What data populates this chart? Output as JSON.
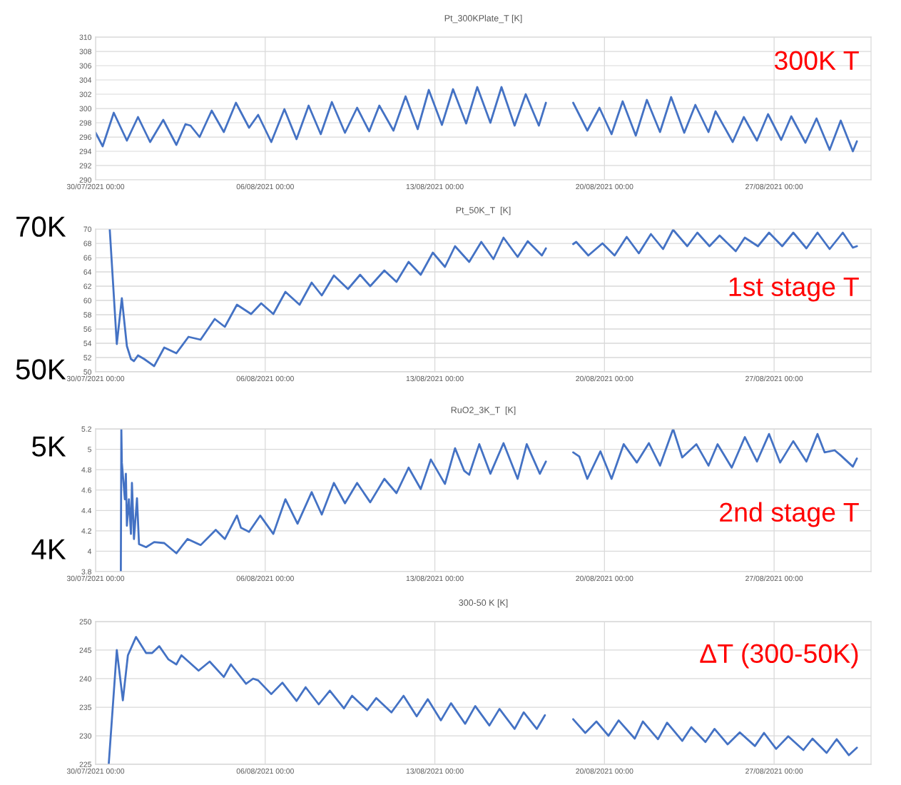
{
  "chart_data": [
    {
      "type": "line",
      "title": "Pt_300KPlate_T [K]",
      "color": "#4472c4",
      "grid": true,
      "xlim": [
        "2021-07-30T00:00",
        "2021-08-31T00:00"
      ],
      "xticks": [
        {
          "value": "2021-07-30",
          "label": "30/07/2021 00:00"
        },
        {
          "value": "2021-08-06",
          "label": "06/08/2021 00:00"
        },
        {
          "value": "2021-08-13",
          "label": "13/08/2021 00:00"
        },
        {
          "value": "2021-08-20",
          "label": "20/08/2021 00:00"
        },
        {
          "value": "2021-08-27",
          "label": "27/08/2021 00:00"
        }
      ],
      "ylim": [
        290,
        310
      ],
      "yticks": [
        290,
        292,
        294,
        296,
        298,
        300,
        302,
        304,
        306,
        308,
        310
      ],
      "annotations": [
        "300K T"
      ],
      "x": [
        "2021-07-30T00:00",
        "2021-07-30T07:00",
        "2021-07-30T18:00",
        "2021-07-31T07:00",
        "2021-07-31T18:00",
        "2021-08-01T06:00",
        "2021-08-01T19:00",
        "2021-08-02T08:00",
        "2021-08-02T17:00",
        "2021-08-02T22:00",
        "2021-08-03T07:00",
        "2021-08-03T19:00",
        "2021-08-04T07:00",
        "2021-08-04T19:00",
        "2021-08-05T08:00",
        "2021-08-05T17:00",
        "2021-08-06T06:00",
        "2021-08-06T19:00",
        "2021-08-07T07:00",
        "2021-08-07T19:00",
        "2021-08-08T07:00",
        "2021-08-08T18:00",
        "2021-08-09T07:00",
        "2021-08-09T19:00",
        "2021-08-10T07:00",
        "2021-08-10T17:00",
        "2021-08-11T07:00",
        "2021-08-11T19:00",
        "2021-08-12T07:00",
        "2021-08-12T18:00",
        "2021-08-13T07:00",
        "2021-08-13T18:00",
        "2021-08-14T07:00",
        "2021-08-14T18:00",
        "2021-08-15T07:00",
        "2021-08-15T18:00",
        "2021-08-16T07:00",
        "2021-08-16T18:00",
        "2021-08-17T07:00",
        "2021-08-17T14:00",
        "2021-08-18T00:00",
        "2021-08-18T17:00",
        "2021-08-19T07:00",
        "2021-08-19T19:00",
        "2021-08-20T07:00",
        "2021-08-20T18:00",
        "2021-08-21T07:00",
        "2021-08-21T18:00",
        "2021-08-22T07:00",
        "2021-08-22T18:00",
        "2021-08-23T07:00",
        "2021-08-23T18:00",
        "2021-08-24T07:00",
        "2021-08-24T14:00",
        "2021-08-25T07:00",
        "2021-08-25T18:00",
        "2021-08-26T07:00",
        "2021-08-26T18:00",
        "2021-08-27T07:00",
        "2021-08-27T17:00",
        "2021-08-28T07:00",
        "2021-08-28T18:00",
        "2021-08-29T07:00",
        "2021-08-29T18:00",
        "2021-08-30T06:00",
        "2021-08-30T10:00"
      ],
      "values": [
        296.6,
        294.7,
        299.4,
        295.5,
        298.8,
        295.3,
        298.4,
        294.9,
        297.8,
        297.6,
        296.0,
        299.7,
        296.7,
        300.8,
        297.3,
        299.1,
        295.3,
        299.9,
        295.7,
        300.4,
        296.4,
        300.9,
        296.6,
        300.1,
        296.8,
        300.4,
        296.9,
        301.7,
        297.1,
        302.6,
        297.7,
        302.7,
        297.9,
        303.0,
        298.0,
        303.0,
        297.6,
        302.0,
        297.6,
        300.8,
        null,
        300.8,
        296.9,
        300.1,
        296.4,
        301.0,
        296.2,
        301.2,
        296.7,
        301.6,
        296.6,
        300.5,
        296.7,
        299.6,
        295.3,
        298.8,
        295.5,
        299.2,
        295.6,
        298.9,
        295.2,
        298.6,
        294.2,
        298.3,
        294.0,
        295.4
      ]
    },
    {
      "type": "line",
      "title": "Pt_50K_T  [K]",
      "color": "#4472c4",
      "grid": true,
      "xlim": [
        "2021-07-30T00:00",
        "2021-08-31T00:00"
      ],
      "xticks": [
        {
          "value": "2021-07-30",
          "label": "30/07/2021 00:00"
        },
        {
          "value": "2021-08-06",
          "label": "06/08/2021 00:00"
        },
        {
          "value": "2021-08-13",
          "label": "13/08/2021 00:00"
        },
        {
          "value": "2021-08-20",
          "label": "20/08/2021 00:00"
        },
        {
          "value": "2021-08-27",
          "label": "27/08/2021 00:00"
        }
      ],
      "ylim": [
        50,
        70
      ],
      "yticks": [
        50,
        52,
        54,
        56,
        58,
        60,
        62,
        64,
        66,
        68,
        70
      ],
      "annotations": [
        "1st stage T",
        "70K",
        "50K"
      ],
      "x": [
        "2021-07-30T14:00",
        "2021-07-30T21:00",
        "2021-07-31T02:00",
        "2021-07-31T07:00",
        "2021-07-31T11:00",
        "2021-07-31T14:00",
        "2021-07-31T18:00",
        "2021-08-01T00:00",
        "2021-08-01T10:00",
        "2021-08-01T20:00",
        "2021-08-02T08:00",
        "2021-08-02T20:00",
        "2021-08-03T08:00",
        "2021-08-03T22:00",
        "2021-08-04T08:00",
        "2021-08-04T20:00",
        "2021-08-05T10:00",
        "2021-08-05T20:00",
        "2021-08-06T08:00",
        "2021-08-06T20:00",
        "2021-08-07T10:00",
        "2021-08-07T22:00",
        "2021-08-08T08:00",
        "2021-08-08T20:00",
        "2021-08-09T10:00",
        "2021-08-09T22:00",
        "2021-08-10T08:00",
        "2021-08-10T22:00",
        "2021-08-11T10:00",
        "2021-08-11T22:00",
        "2021-08-12T10:00",
        "2021-08-12T22:00",
        "2021-08-13T10:00",
        "2021-08-13T20:00",
        "2021-08-14T10:00",
        "2021-08-14T22:00",
        "2021-08-15T10:00",
        "2021-08-15T20:00",
        "2021-08-16T10:00",
        "2021-08-16T20:00",
        "2021-08-17T10:00",
        "2021-08-17T14:00",
        "2021-08-18T00:00",
        "2021-08-18T17:00",
        "2021-08-18T20:00",
        "2021-08-19T08:00",
        "2021-08-19T22:00",
        "2021-08-20T10:00",
        "2021-08-20T22:00",
        "2021-08-21T10:00",
        "2021-08-21T22:00",
        "2021-08-22T10:00",
        "2021-08-22T20:00",
        "2021-08-23T10:00",
        "2021-08-23T20:00",
        "2021-08-24T08:00",
        "2021-08-24T18:00",
        "2021-08-25T10:00",
        "2021-08-25T19:00",
        "2021-08-26T08:00",
        "2021-08-26T19:00",
        "2021-08-27T08:00",
        "2021-08-27T19:00",
        "2021-08-28T08:00",
        "2021-08-28T19:00",
        "2021-08-29T07:00",
        "2021-08-29T20:00",
        "2021-08-30T06:00",
        "2021-08-30T10:00"
      ],
      "values": [
        70,
        53.9,
        60.3,
        53.6,
        51.8,
        51.5,
        52.3,
        51.8,
        50.8,
        53.4,
        52.6,
        54.9,
        54.5,
        57.4,
        56.3,
        59.4,
        58.1,
        59.6,
        58.1,
        61.2,
        59.4,
        62.5,
        60.7,
        63.5,
        61.6,
        63.6,
        62.0,
        64.2,
        62.6,
        65.4,
        63.6,
        66.7,
        64.7,
        67.6,
        65.4,
        68.2,
        65.8,
        68.8,
        66.1,
        68.3,
        66.3,
        67.3,
        null,
        67.9,
        68.2,
        66.3,
        68.0,
        66.3,
        68.9,
        66.6,
        69.3,
        67.2,
        69.9,
        67.6,
        69.5,
        67.6,
        69.1,
        66.9,
        68.8,
        67.6,
        69.5,
        67.6,
        69.5,
        67.3,
        69.5,
        67.2,
        69.5,
        67.4,
        67.6
      ]
    },
    {
      "type": "line",
      "title": "RuO2_3K_T  [K]",
      "color": "#4472c4",
      "grid": true,
      "xlim": [
        "2021-07-30T00:00",
        "2021-08-31T00:00"
      ],
      "xticks": [
        {
          "value": "2021-07-30",
          "label": "30/07/2021 00:00"
        },
        {
          "value": "2021-08-06",
          "label": "06/08/2021 00:00"
        },
        {
          "value": "2021-08-13",
          "label": "13/08/2021 00:00"
        },
        {
          "value": "2021-08-20",
          "label": "20/08/2021 00:00"
        },
        {
          "value": "2021-08-27",
          "label": "27/08/2021 00:00"
        }
      ],
      "ylim": [
        3.8,
        5.2
      ],
      "yticks": [
        3.8,
        4,
        4.2,
        4.4,
        4.6,
        4.8,
        5,
        5.2
      ],
      "annotations": [
        "2nd stage T",
        "5K",
        "4K"
      ],
      "x": [
        "2021-07-31T01:00",
        "2021-07-31T01:30",
        "2021-07-31T02:00",
        "2021-07-31T05:00",
        "2021-07-31T06:00",
        "2021-07-31T07:00",
        "2021-07-31T09:00",
        "2021-07-31T11:00",
        "2021-07-31T12:00",
        "2021-07-31T14:00",
        "2021-07-31T17:00",
        "2021-07-31T19:00",
        "2021-08-01T02:00",
        "2021-08-01T10:00",
        "2021-08-01T20:00",
        "2021-08-02T08:00",
        "2021-08-02T19:00",
        "2021-08-03T08:00",
        "2021-08-03T23:00",
        "2021-08-04T08:00",
        "2021-08-04T20:00",
        "2021-08-05T00:00",
        "2021-08-05T08:00",
        "2021-08-05T19:00",
        "2021-08-06T08:00",
        "2021-08-06T20:00",
        "2021-08-07T08:00",
        "2021-08-07T22:00",
        "2021-08-08T08:00",
        "2021-08-08T20:00",
        "2021-08-09T07:00",
        "2021-08-09T19:00",
        "2021-08-10T08:00",
        "2021-08-10T22:00",
        "2021-08-11T10:00",
        "2021-08-11T22:00",
        "2021-08-12T10:00",
        "2021-08-12T20:00",
        "2021-08-13T10:00",
        "2021-08-13T20:00",
        "2021-08-14T05:00",
        "2021-08-14T10:00",
        "2021-08-14T20:00",
        "2021-08-15T07:00",
        "2021-08-15T20:00",
        "2021-08-16T10:00",
        "2021-08-16T19:00",
        "2021-08-17T08:00",
        "2021-08-17T14:00",
        "2021-08-18T00:00",
        "2021-08-18T17:00",
        "2021-08-18T23:00",
        "2021-08-19T07:00",
        "2021-08-19T20:00",
        "2021-08-20T07:00",
        "2021-08-20T19:00",
        "2021-08-21T08:00",
        "2021-08-21T20:00",
        "2021-08-22T07:00",
        "2021-08-22T20:00",
        "2021-08-23T05:00",
        "2021-08-23T19:00",
        "2021-08-24T07:00",
        "2021-08-24T16:00",
        "2021-08-25T06:00",
        "2021-08-25T19:00",
        "2021-08-26T07:00",
        "2021-08-26T19:00",
        "2021-08-27T06:00",
        "2021-08-27T19:00",
        "2021-08-28T08:00",
        "2021-08-28T19:00",
        "2021-08-29T02:00",
        "2021-08-29T12:00",
        "2021-08-29T18:00",
        "2021-08-30T06:00",
        "2021-08-30T10:00"
      ],
      "values": [
        3.8,
        5.2,
        4.87,
        4.51,
        4.76,
        4.25,
        4.51,
        4.17,
        4.67,
        4.12,
        4.52,
        4.07,
        4.04,
        4.09,
        4.08,
        3.98,
        4.12,
        4.06,
        4.21,
        4.12,
        4.35,
        4.23,
        4.19,
        4.35,
        4.17,
        4.51,
        4.27,
        4.58,
        4.36,
        4.67,
        4.47,
        4.67,
        4.48,
        4.71,
        4.57,
        4.82,
        4.61,
        4.9,
        4.66,
        5.01,
        4.79,
        4.75,
        5.05,
        4.76,
        5.06,
        4.71,
        5.05,
        4.76,
        4.88,
        null,
        4.97,
        4.93,
        4.71,
        4.98,
        4.71,
        5.05,
        4.87,
        5.06,
        4.84,
        5.2,
        4.92,
        5.05,
        4.84,
        5.05,
        4.82,
        5.12,
        4.88,
        5.15,
        4.87,
        5.08,
        4.88,
        5.15,
        4.97,
        4.99,
        4.94,
        4.83,
        4.91
      ]
    },
    {
      "type": "line",
      "title": "300-50 K [K]",
      "color": "#4472c4",
      "grid": true,
      "xlim": [
        "2021-07-30T00:00",
        "2021-08-31T00:00"
      ],
      "xticks": [
        {
          "value": "2021-07-30",
          "label": "30/07/2021 00:00"
        },
        {
          "value": "2021-08-06",
          "label": "06/08/2021 00:00"
        },
        {
          "value": "2021-08-13",
          "label": "13/08/2021 00:00"
        },
        {
          "value": "2021-08-20",
          "label": "20/08/2021 00:00"
        },
        {
          "value": "2021-08-27",
          "label": "27/08/2021 00:00"
        }
      ],
      "ylim": [
        225,
        250
      ],
      "yticks": [
        225,
        230,
        235,
        240,
        245,
        250
      ],
      "annotations": [
        "ΔT (300-50K)"
      ],
      "x": [
        "2021-07-30T13:00",
        "2021-07-30T21:00",
        "2021-07-31T03:00",
        "2021-07-31T08:00",
        "2021-07-31T16:00",
        "2021-08-01T02:00",
        "2021-08-01T08:00",
        "2021-08-01T15:00",
        "2021-08-02T00:00",
        "2021-08-02T08:00",
        "2021-08-02T13:00",
        "2021-08-03T06:00",
        "2021-08-03T17:00",
        "2021-08-04T07:00",
        "2021-08-04T14:00",
        "2021-08-05T05:00",
        "2021-08-05T12:00",
        "2021-08-05T17:00",
        "2021-08-06T06:00",
        "2021-08-06T17:00",
        "2021-08-07T07:00",
        "2021-08-07T16:00",
        "2021-08-08T05:00",
        "2021-08-08T16:00",
        "2021-08-09T06:00",
        "2021-08-09T14:00",
        "2021-08-10T05:00",
        "2021-08-10T14:00",
        "2021-08-11T05:00",
        "2021-08-11T17:00",
        "2021-08-12T06:00",
        "2021-08-12T17:00",
        "2021-08-13T06:00",
        "2021-08-13T16:00",
        "2021-08-14T06:00",
        "2021-08-14T16:00",
        "2021-08-15T06:00",
        "2021-08-15T16:00",
        "2021-08-16T07:00",
        "2021-08-16T16:00",
        "2021-08-17T05:00",
        "2021-08-17T13:00",
        "2021-08-18T00:00",
        "2021-08-18T17:00",
        "2021-08-19T05:00",
        "2021-08-19T16:00",
        "2021-08-20T04:00",
        "2021-08-20T14:00",
        "2021-08-21T06:00",
        "2021-08-21T14:00",
        "2021-08-22T05:00",
        "2021-08-22T14:00",
        "2021-08-23T05:00",
        "2021-08-23T14:00",
        "2021-08-24T04:00",
        "2021-08-24T13:00",
        "2021-08-25T02:00",
        "2021-08-25T14:00",
        "2021-08-26T05:00",
        "2021-08-26T14:00",
        "2021-08-27T02:00",
        "2021-08-27T14:00",
        "2021-08-28T05:00",
        "2021-08-28T14:00",
        "2021-08-29T04:00",
        "2021-08-29T14:00",
        "2021-08-30T02:00",
        "2021-08-30T10:00"
      ],
      "values": [
        225,
        245.0,
        236.2,
        244.1,
        247.3,
        244.5,
        244.5,
        245.7,
        243.4,
        242.5,
        244.1,
        241.4,
        243.0,
        240.3,
        242.5,
        239.1,
        240.0,
        239.7,
        237.3,
        239.3,
        236.1,
        238.5,
        235.5,
        237.9,
        234.8,
        237.0,
        234.5,
        236.6,
        234.1,
        237.0,
        233.4,
        236.4,
        232.7,
        235.7,
        232.1,
        235.2,
        231.8,
        234.7,
        231.2,
        234.1,
        231.2,
        233.6,
        null,
        232.9,
        230.5,
        232.5,
        230.0,
        232.7,
        229.5,
        232.5,
        229.4,
        232.3,
        229.1,
        231.5,
        228.9,
        231.2,
        228.5,
        230.6,
        228.2,
        230.5,
        227.7,
        229.9,
        227.5,
        229.5,
        227.0,
        229.4,
        226.6,
        227.9
      ]
    }
  ]
}
